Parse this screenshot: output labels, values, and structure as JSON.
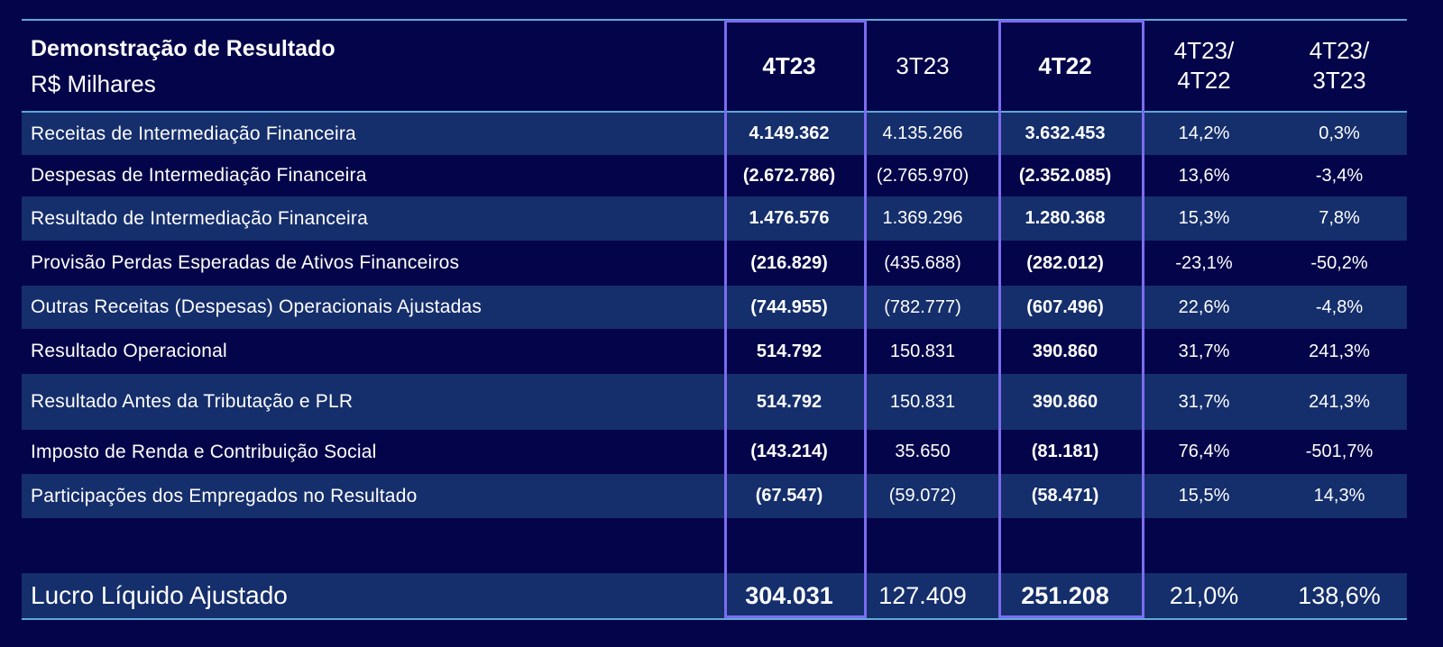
{
  "header": {
    "title": "Demonstração de Resultado",
    "subtitle": "R$ Milhares",
    "columns": [
      {
        "line1": "4T23",
        "line2": ""
      },
      {
        "line1": "3T23",
        "line2": ""
      },
      {
        "line1": "4T22",
        "line2": ""
      },
      {
        "line1": "4T23/",
        "line2": "4T22"
      },
      {
        "line1": "4T23/",
        "line2": "3T23"
      }
    ]
  },
  "rows": [
    {
      "label": "Receitas de Intermediação Financeira",
      "values": [
        "4.149.362",
        "4.135.266",
        "3.632.453",
        "14,2%",
        "0,3%"
      ]
    },
    {
      "label": "Despesas de Intermediação Financeira",
      "values": [
        "(2.672.786)",
        "(2.765.970)",
        "(2.352.085)",
        "13,6%",
        "-3,4%"
      ]
    },
    {
      "label": "Resultado de Intermediação Financeira",
      "values": [
        "1.476.576",
        "1.369.296",
        "1.280.368",
        "15,3%",
        "7,8%"
      ]
    },
    {
      "label": "Provisão Perdas Esperadas de Ativos Financeiros",
      "values": [
        "(216.829)",
        "(435.688)",
        "(282.012)",
        "-23,1%",
        "-50,2%"
      ]
    },
    {
      "label": "Outras Receitas (Despesas) Operacionais Ajustadas",
      "values": [
        "(744.955)",
        "(782.777)",
        "(607.496)",
        "22,6%",
        "-4,8%"
      ]
    },
    {
      "label": "Resultado Operacional",
      "values": [
        "514.792",
        "150.831",
        "390.860",
        "31,7%",
        "241,3%"
      ]
    },
    {
      "label": "Resultado Antes da Tributação e PLR",
      "values": [
        "514.792",
        "150.831",
        "390.860",
        "31,7%",
        "241,3%"
      ]
    },
    {
      "label": "Imposto de Renda e Contribuição Social",
      "values": [
        "(143.214)",
        "35.650",
        "(81.181)",
        "76,4%",
        "-501,7%"
      ]
    },
    {
      "label": "Participações dos Empregados no Resultado",
      "values": [
        "(67.547)",
        "(59.072)",
        "(58.471)",
        "15,5%",
        "14,3%"
      ]
    }
  ],
  "total": {
    "label": "Lucro Líquido Ajustado",
    "values": [
      "304.031",
      "127.409",
      "251.208",
      "21,0%",
      "138,6%"
    ]
  },
  "colors": {
    "background": "#04044a",
    "row_stripe": "#152e6c",
    "rule": "#5fa8d8",
    "highlight_border": "#7b6cf0",
    "text": "#ffffff"
  }
}
